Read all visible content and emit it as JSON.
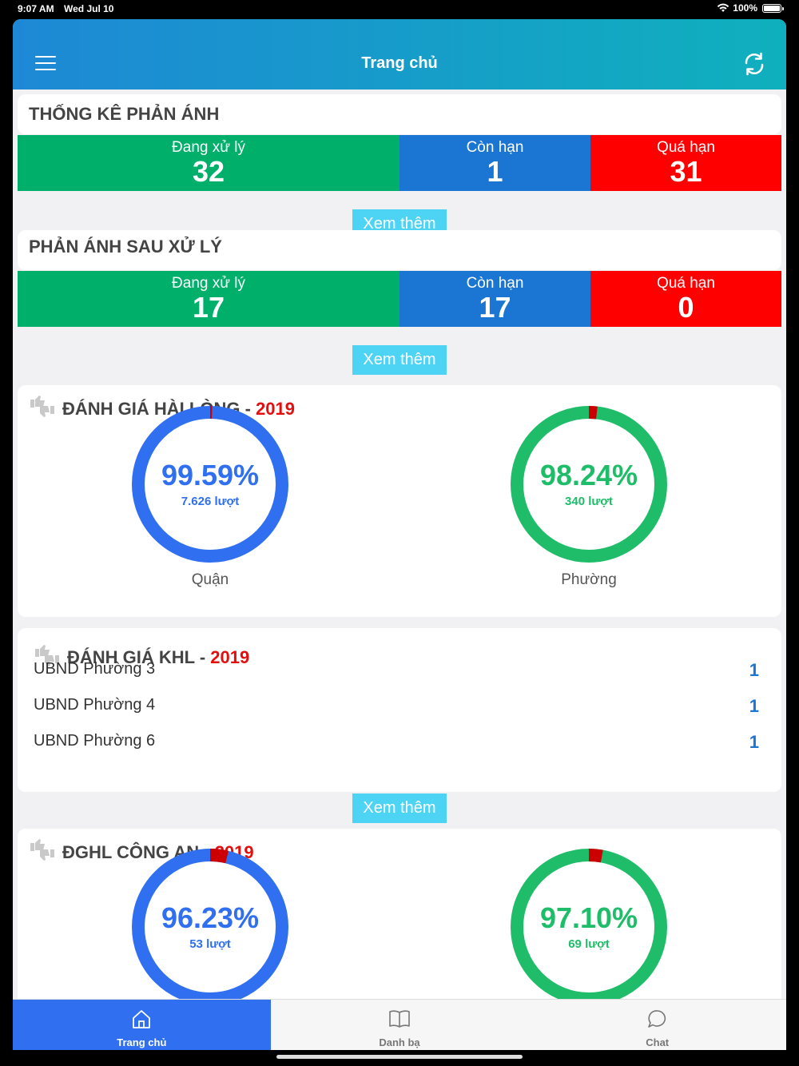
{
  "status_bar": {
    "time": "9:07 AM",
    "date": "Wed Jul 10",
    "battery": "100%"
  },
  "nav": {
    "title": "Trang chủ"
  },
  "thong_ke": {
    "title": "THỐNG KÊ PHẢN ÁNH",
    "items": [
      {
        "label": "Đang xử lý",
        "value": "32"
      },
      {
        "label": "Còn hạn",
        "value": "1"
      },
      {
        "label": "Quá hạn",
        "value": "31"
      }
    ],
    "more": "Xem thêm"
  },
  "sau_xu_ly": {
    "title": "PHẢN ÁNH SAU XỬ LÝ",
    "items": [
      {
        "label": "Đang xử lý",
        "value": "17"
      },
      {
        "label": "Còn hạn",
        "value": "17"
      },
      {
        "label": "Quá hạn",
        "value": "0"
      }
    ],
    "more": "Xem thêm"
  },
  "hai_long": {
    "title": "ĐÁNH GIÁ HÀI LÒNG",
    "sep": " - ",
    "year": "2019",
    "charts": [
      {
        "percent_text": "99.59%",
        "percent": 99.59,
        "count": "7.626 lượt",
        "caption": "Quận",
        "color": "#2f6ff0"
      },
      {
        "percent_text": "98.24%",
        "percent": 98.24,
        "count": "340 lượt",
        "caption": "Phường",
        "color": "#1fbd6a"
      }
    ]
  },
  "khl": {
    "title": "ĐÁNH GIÁ KHL",
    "sep": " - ",
    "year": "2019",
    "rows": [
      {
        "name": "UBND Phường 3",
        "value": "1"
      },
      {
        "name": "UBND Phường 4",
        "value": "1"
      },
      {
        "name": "UBND Phường 6",
        "value": "1"
      }
    ],
    "more": "Xem thêm"
  },
  "cong_an": {
    "title": "ĐGHL CÔNG AN",
    "sep": " - ",
    "year": "2019",
    "charts": [
      {
        "percent_text": "96.23%",
        "percent": 96.23,
        "count": "53 lượt",
        "color": "#2f6ff0"
      },
      {
        "percent_text": "97.10%",
        "percent": 97.1,
        "count": "69 lượt",
        "color": "#1fbd6a"
      }
    ]
  },
  "colors": {
    "dissatisfied": "#cc0000",
    "green": "#00b06a",
    "blue": "#1a76d2",
    "red": "#ff0000"
  },
  "tabs": [
    {
      "label": "Trang chủ",
      "icon": "home-icon",
      "active": true
    },
    {
      "label": "Danh bạ",
      "icon": "book-icon",
      "active": false
    },
    {
      "label": "Chat",
      "icon": "chat-bubble-icon",
      "active": false
    }
  ]
}
